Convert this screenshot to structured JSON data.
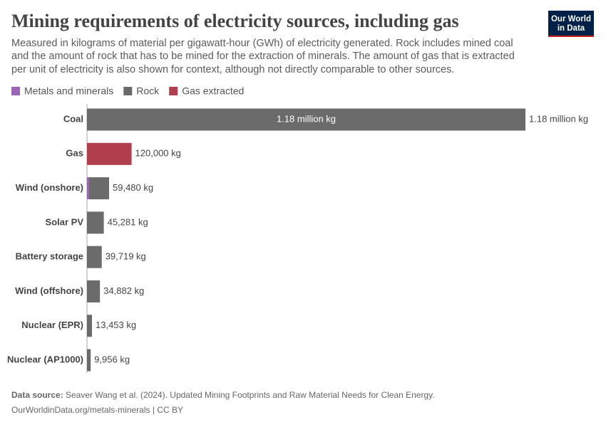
{
  "chart_data": {
    "type": "stacked-bar-horizontal",
    "title": "Mining requirements of electricity sources, including gas",
    "subtitle": [
      "Measured in kilograms of material per gigawatt-hour (GWh) of electricity generated. Rock includes mined coal",
      "and the amount of rock that has to be mined for the extraction of minerals. The amount of gas that is extracted",
      "per unit of electricity is also shown for context, although not directly comparable to other sources."
    ],
    "categories": [
      "Coal",
      "Gas",
      "Wind (onshore)",
      "Solar PV",
      "Battery storage",
      "Wind (offshore)",
      "Nuclear (EPR)",
      "Nuclear (AP1000)"
    ],
    "series": [
      {
        "name": "Metals and minerals",
        "color": "#9a65b5",
        "values": [
          0,
          null,
          5000,
          0,
          0,
          0,
          0,
          0
        ]
      },
      {
        "name": "Rock",
        "color": "#6b6b6b",
        "values": [
          1180000,
          null,
          54480,
          45281,
          39719,
          34882,
          13453,
          9956
        ]
      },
      {
        "name": "Gas extracted",
        "color": "#b13e4d",
        "values": [
          null,
          120000,
          null,
          null,
          null,
          null,
          null,
          null
        ]
      }
    ],
    "total_labels": [
      "1.18 million kg",
      "120,000 kg",
      "59,480 kg",
      "45,281 kg",
      "39,719 kg",
      "34,882 kg",
      "13,453 kg",
      "9,956 kg"
    ],
    "xlim": [
      0,
      1180000
    ],
    "source_label": "Data source:",
    "source": "Seaver Wang et al. (2024). Updated Mining Footprints and Raw Material Needs for Clean Energy.",
    "url": "OurWorldinData.org/metals-minerals | CC BY",
    "logo": [
      "Our World",
      "in Data"
    ]
  }
}
